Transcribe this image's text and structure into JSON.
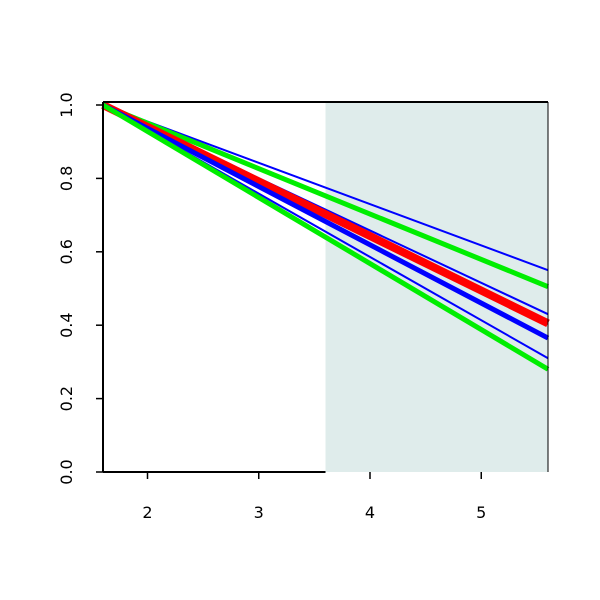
{
  "chart_data": {
    "type": "line",
    "x": [
      1.6,
      5.6
    ],
    "series": [
      {
        "color": "#0000ff",
        "width": 2,
        "values": [
          1.0,
          0.55
        ]
      },
      {
        "color": "#00ee00",
        "width": 5,
        "values": [
          1.0,
          0.505
        ]
      },
      {
        "color": "#0000ff",
        "width": 2,
        "values": [
          1.0,
          0.43
        ]
      },
      {
        "color": "#ff0000",
        "width": 8,
        "values": [
          1.0,
          0.405
        ]
      },
      {
        "color": "#0000ff",
        "width": 5,
        "values": [
          1.0,
          0.365
        ]
      },
      {
        "color": "#0000ff",
        "width": 2,
        "values": [
          1.0,
          0.31
        ]
      },
      {
        "color": "#00ee00",
        "width": 5,
        "values": [
          1.0,
          0.28
        ]
      }
    ],
    "shade": {
      "xlim": [
        3.6,
        5.6
      ],
      "color": "#dfeceb"
    },
    "xlim": [
      1.6,
      5.6
    ],
    "ylim": [
      0,
      1.0
    ],
    "xticks": [
      2,
      3,
      4,
      5
    ],
    "yticks": [
      {
        "value": 0,
        "label": "0.0"
      },
      {
        "value": 0.2,
        "label": "0.2"
      },
      {
        "value": 0.4,
        "label": "0.4"
      },
      {
        "value": 0.6,
        "label": "0.6"
      },
      {
        "value": 0.8,
        "label": "0.8"
      },
      {
        "value": 1.0,
        "label": "1.0"
      }
    ]
  }
}
